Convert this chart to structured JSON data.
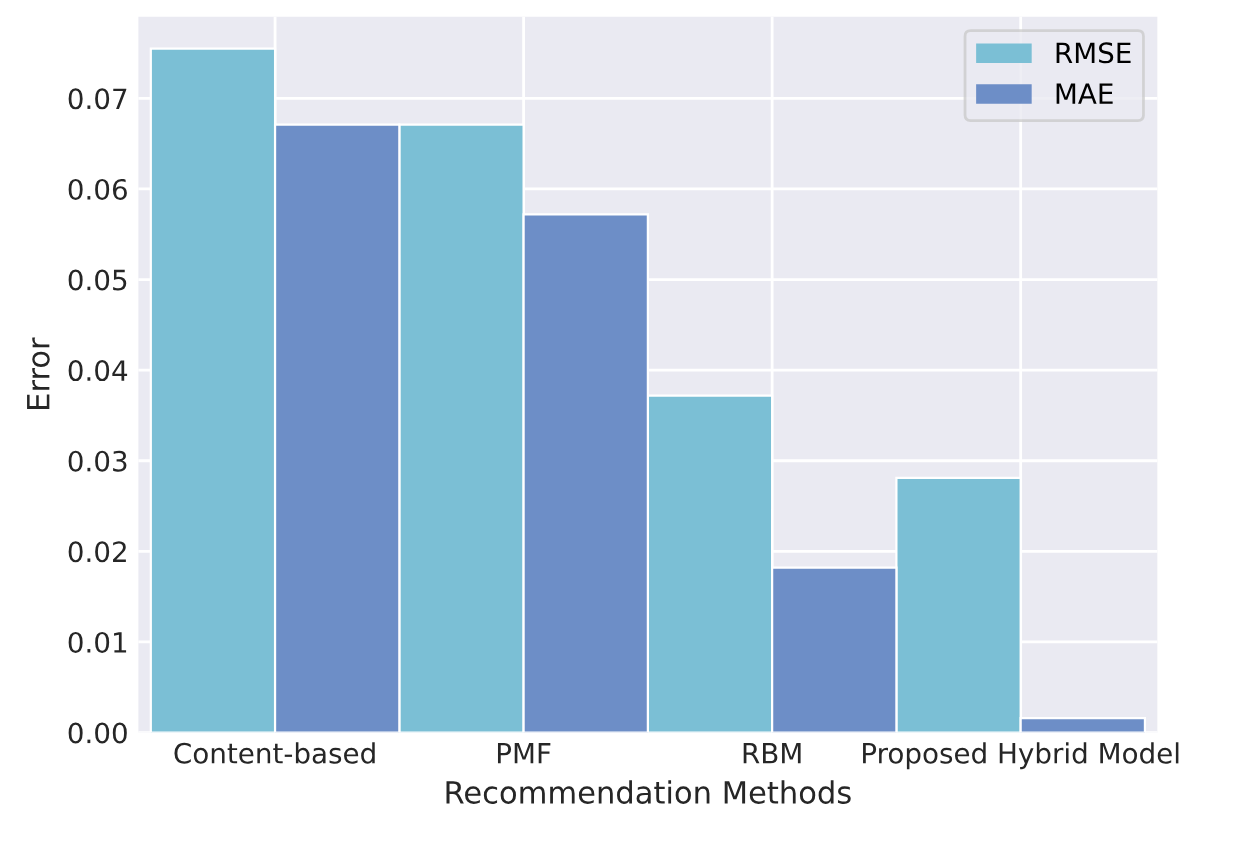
{
  "chart_data": {
    "type": "bar",
    "xlabel": "Recommendation Methods",
    "ylabel": "Error",
    "categories": [
      "Content-based",
      "PMF",
      "RBM",
      "Proposed Hybrid Model"
    ],
    "series": [
      {
        "name": "RMSE",
        "color": "#7bbfd5",
        "values": [
          0.0755,
          0.0671,
          0.0372,
          0.0281
        ]
      },
      {
        "name": "MAE",
        "color": "#6d8ec7",
        "values": [
          0.0671,
          0.0572,
          0.0182,
          0.0016
        ]
      }
    ],
    "ylim": [
      0,
      0.079
    ],
    "yticks": [
      {
        "value": 0,
        "label": "0.00"
      },
      {
        "value": 0.01,
        "label": "0.01"
      },
      {
        "value": 0.02,
        "label": "0.02"
      },
      {
        "value": 0.03,
        "label": "0.03"
      },
      {
        "value": 0.04,
        "label": "0.04"
      },
      {
        "value": 0.05,
        "label": "0.05"
      },
      {
        "value": 0.06,
        "label": "0.06"
      },
      {
        "value": 0.07,
        "label": "0.07"
      }
    ],
    "grid": true,
    "legend": "top right"
  }
}
